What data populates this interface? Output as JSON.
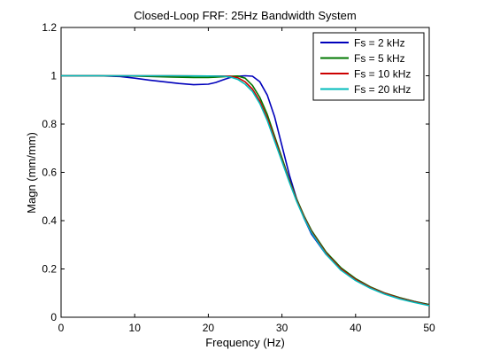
{
  "chart_data": {
    "type": "line",
    "title": "Closed-Loop FRF: 25Hz Bandwidth System",
    "xlabel": "Frequency (Hz)",
    "ylabel": "Magn (mm/mm)",
    "xlim": [
      0,
      50
    ],
    "ylim": [
      0,
      1.2
    ],
    "xticks": [
      0,
      10,
      20,
      30,
      40,
      50
    ],
    "yticks": [
      0,
      0.2,
      0.4,
      0.6,
      0.8,
      1,
      1.2
    ],
    "xtick_labels": [
      "0",
      "10",
      "20",
      "30",
      "40",
      "50"
    ],
    "ytick_labels": [
      "0",
      "0.2",
      "0.4",
      "0.6",
      "0.8",
      "1",
      "1.2"
    ],
    "grid": false,
    "legend_position": "top-right",
    "series": [
      {
        "name": "Fs = 2 kHz",
        "color": "#0000bb",
        "x": [
          0,
          5,
          8,
          10,
          12,
          14,
          16,
          18,
          20,
          21,
          22,
          23,
          24,
          25,
          26,
          27,
          28,
          29,
          30,
          31,
          32,
          33,
          34,
          36,
          38,
          40,
          42,
          44,
          46,
          48,
          50
        ],
        "y": [
          1.0,
          1.0,
          0.997,
          0.99,
          0.982,
          0.975,
          0.968,
          0.963,
          0.965,
          0.972,
          0.983,
          0.993,
          0.998,
          1.0,
          0.998,
          0.975,
          0.92,
          0.83,
          0.71,
          0.59,
          0.49,
          0.41,
          0.345,
          0.26,
          0.2,
          0.157,
          0.124,
          0.099,
          0.08,
          0.065,
          0.052
        ]
      },
      {
        "name": "Fs = 5 kHz",
        "color": "#007700",
        "x": [
          0,
          5,
          10,
          15,
          18,
          20,
          21,
          22,
          23,
          24,
          25,
          26,
          27,
          28,
          29,
          30,
          31,
          32,
          33,
          34,
          36,
          38,
          40,
          42,
          44,
          46,
          48,
          50
        ],
        "y": [
          1.0,
          1.0,
          0.999,
          0.995,
          0.993,
          0.993,
          0.994,
          0.996,
          0.998,
          0.999,
          0.99,
          0.96,
          0.91,
          0.84,
          0.75,
          0.66,
          0.57,
          0.49,
          0.42,
          0.36,
          0.27,
          0.205,
          0.16,
          0.126,
          0.1,
          0.081,
          0.065,
          0.052
        ]
      },
      {
        "name": "Fs = 10 kHz",
        "color": "#cc0000",
        "x": [
          0,
          5,
          10,
          15,
          20,
          22,
          23,
          24,
          25,
          26,
          27,
          28,
          29,
          30,
          31,
          32,
          33,
          34,
          36,
          38,
          40,
          42,
          44,
          46,
          48,
          50
        ],
        "y": [
          1.0,
          1.0,
          1.0,
          1.0,
          0.999,
          0.999,
          0.998,
          0.992,
          0.975,
          0.945,
          0.895,
          0.825,
          0.74,
          0.65,
          0.565,
          0.485,
          0.415,
          0.355,
          0.265,
          0.2,
          0.156,
          0.123,
          0.098,
          0.079,
          0.063,
          0.05
        ]
      },
      {
        "name": "Fs = 20 kHz",
        "color": "#00bbbb",
        "x": [
          0,
          5,
          10,
          15,
          20,
          22,
          23,
          24,
          25,
          26,
          27,
          28,
          29,
          30,
          31,
          32,
          33,
          34,
          36,
          38,
          40,
          42,
          44,
          46,
          48,
          50
        ],
        "y": [
          1.0,
          1.0,
          1.0,
          1.0,
          0.999,
          0.998,
          0.995,
          0.985,
          0.965,
          0.935,
          0.885,
          0.815,
          0.73,
          0.645,
          0.56,
          0.48,
          0.41,
          0.35,
          0.26,
          0.195,
          0.152,
          0.12,
          0.095,
          0.076,
          0.061,
          0.048
        ]
      }
    ]
  }
}
